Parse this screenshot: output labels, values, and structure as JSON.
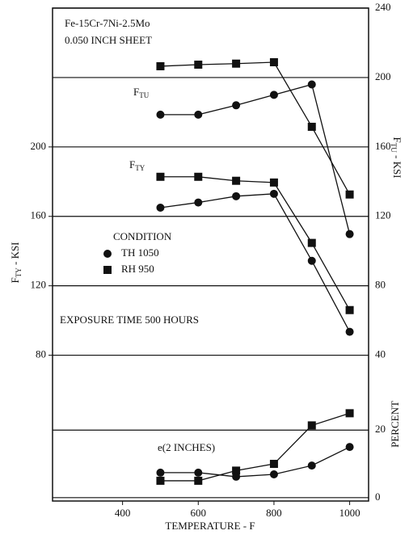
{
  "chart_data": {
    "type": "line",
    "annotations": [
      "Fe-15Cr-7Ni-2.5Mo",
      "0.050 INCH SHEET",
      "EXPOSURE TIME 500 HOURS",
      "e(2 INCHES)"
    ],
    "group_labels": [
      {
        "main": "F",
        "sub": "TU"
      },
      {
        "main": "F",
        "sub": "TY"
      }
    ],
    "x_label": "TEMPERATURE - F",
    "y_label": {
      "main": "F",
      "sub": "TY",
      "rest": " - KSI"
    },
    "y2_label": {
      "main": "F",
      "sub": "TU",
      "rest": " - KSI"
    },
    "y3_label": "PERCENT",
    "legend": {
      "title": "CONDITION",
      "entries": [
        {
          "label": "TH 1050",
          "marker": "circle"
        },
        {
          "label": "RH 950",
          "marker": "square"
        }
      ]
    },
    "x": [
      500,
      600,
      700,
      800,
      900,
      1000
    ],
    "xlim": [
      215,
      1050
    ],
    "xticks": [
      400,
      600,
      800,
      1000
    ],
    "ylim": [
      -4,
      280
    ],
    "yticks": [
      80,
      120,
      160,
      200
    ],
    "y2lim": [
      -44,
      240
    ],
    "y2ticks": [
      40,
      80,
      120,
      160,
      200,
      240
    ],
    "y3lim": [
      -1,
      145
    ],
    "y3ticks": [
      0,
      20
    ],
    "color": "#111111",
    "grid": true,
    "series": [
      {
        "condition": 1,
        "axis": "y2",
        "values": [
          206.5,
          207.4,
          208,
          208.8,
          171.6,
          132.6
        ]
      },
      {
        "condition": 0,
        "axis": "y2",
        "values": [
          178.6,
          178.6,
          184,
          190,
          196,
          109.8
        ]
      },
      {
        "condition": 1,
        "axis": "y",
        "values": [
          182.8,
          182.8,
          180.5,
          179.5,
          144.7,
          106
        ]
      },
      {
        "condition": 0,
        "axis": "y",
        "values": [
          165,
          168,
          171.6,
          173,
          134.4,
          93.5
        ]
      },
      {
        "condition": 1,
        "axis": "y3",
        "values": [
          5,
          5,
          8,
          10,
          21.4,
          25
        ]
      },
      {
        "condition": 0,
        "axis": "y3",
        "values": [
          7.4,
          7.4,
          6.2,
          6.9,
          9.5,
          15
        ]
      }
    ]
  }
}
